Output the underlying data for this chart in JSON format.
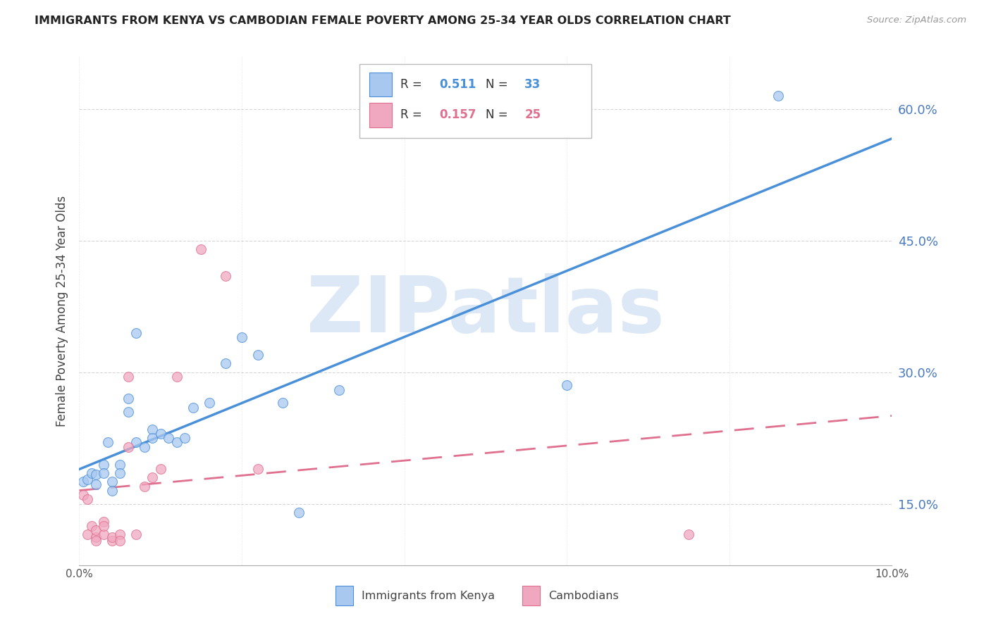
{
  "title": "IMMIGRANTS FROM KENYA VS CAMBODIAN FEMALE POVERTY AMONG 25-34 YEAR OLDS CORRELATION CHART",
  "source": "Source: ZipAtlas.com",
  "ylabel": "Female Poverty Among 25-34 Year Olds",
  "watermark": "ZIPatlas",
  "xmin": 0.0,
  "xmax": 0.1,
  "ymin": 0.08,
  "ymax": 0.66,
  "yticks": [
    0.15,
    0.3,
    0.45,
    0.6
  ],
  "xticks": [
    0.0,
    0.02,
    0.04,
    0.06,
    0.08,
    0.1
  ],
  "kenya_R": "0.511",
  "kenya_N": "33",
  "camb_R": "0.157",
  "camb_N": "25",
  "kenya_scatter": [
    [
      0.0005,
      0.175
    ],
    [
      0.001,
      0.178
    ],
    [
      0.0015,
      0.185
    ],
    [
      0.002,
      0.183
    ],
    [
      0.002,
      0.172
    ],
    [
      0.003,
      0.195
    ],
    [
      0.003,
      0.185
    ],
    [
      0.0035,
      0.22
    ],
    [
      0.004,
      0.175
    ],
    [
      0.004,
      0.165
    ],
    [
      0.005,
      0.195
    ],
    [
      0.005,
      0.185
    ],
    [
      0.006,
      0.27
    ],
    [
      0.006,
      0.255
    ],
    [
      0.007,
      0.345
    ],
    [
      0.007,
      0.22
    ],
    [
      0.008,
      0.215
    ],
    [
      0.009,
      0.235
    ],
    [
      0.009,
      0.225
    ],
    [
      0.01,
      0.23
    ],
    [
      0.011,
      0.225
    ],
    [
      0.012,
      0.22
    ],
    [
      0.013,
      0.225
    ],
    [
      0.014,
      0.26
    ],
    [
      0.016,
      0.265
    ],
    [
      0.018,
      0.31
    ],
    [
      0.02,
      0.34
    ],
    [
      0.022,
      0.32
    ],
    [
      0.025,
      0.265
    ],
    [
      0.027,
      0.14
    ],
    [
      0.032,
      0.28
    ],
    [
      0.06,
      0.285
    ],
    [
      0.086,
      0.615
    ]
  ],
  "cambodian_scatter": [
    [
      0.0005,
      0.16
    ],
    [
      0.001,
      0.155
    ],
    [
      0.001,
      0.115
    ],
    [
      0.0015,
      0.125
    ],
    [
      0.002,
      0.112
    ],
    [
      0.002,
      0.108
    ],
    [
      0.002,
      0.12
    ],
    [
      0.003,
      0.115
    ],
    [
      0.003,
      0.13
    ],
    [
      0.003,
      0.125
    ],
    [
      0.004,
      0.108
    ],
    [
      0.004,
      0.112
    ],
    [
      0.005,
      0.115
    ],
    [
      0.005,
      0.108
    ],
    [
      0.006,
      0.215
    ],
    [
      0.006,
      0.295
    ],
    [
      0.007,
      0.115
    ],
    [
      0.008,
      0.17
    ],
    [
      0.009,
      0.18
    ],
    [
      0.01,
      0.19
    ],
    [
      0.012,
      0.295
    ],
    [
      0.015,
      0.44
    ],
    [
      0.018,
      0.41
    ],
    [
      0.022,
      0.19
    ],
    [
      0.075,
      0.115
    ]
  ],
  "kenya_line_color": "#4a90d9",
  "cambodian_line_color": "#e07090",
  "scatter_kenya_color": "#a8c8f0",
  "scatter_cambodian_color": "#f0a8c0",
  "scatter_alpha": 0.75,
  "scatter_size": 100,
  "bg_color": "#ffffff",
  "grid_color": "#cccccc",
  "title_color": "#222222",
  "axis_label_color": "#444444",
  "right_axis_color": "#4a7abf",
  "watermark_color": "#dce8f5",
  "watermark_fontsize": 80
}
